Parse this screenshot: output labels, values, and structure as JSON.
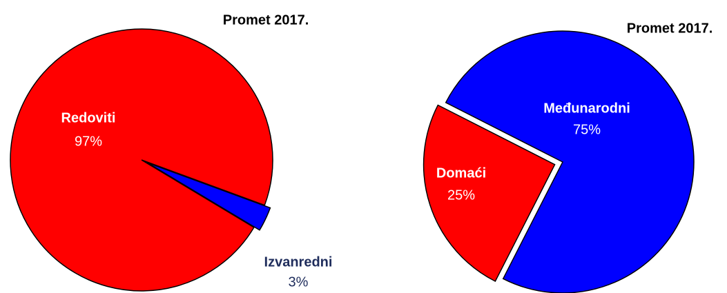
{
  "chart_data": [
    {
      "type": "pie",
      "title": "Promet 2017.",
      "categories": [
        "Redoviti",
        "Izvanredni"
      ],
      "values": [
        97,
        3
      ],
      "value_labels": [
        "97%",
        "3%"
      ],
      "colors": [
        "#ff0000",
        "#0000ff"
      ]
    },
    {
      "type": "pie",
      "title": "Promet 2017.",
      "categories": [
        "Međunarodni",
        "Domaći"
      ],
      "values": [
        75,
        25
      ],
      "value_labels": [
        "75%",
        "25%"
      ],
      "colors": [
        "#0000ff",
        "#ff0000"
      ]
    }
  ]
}
